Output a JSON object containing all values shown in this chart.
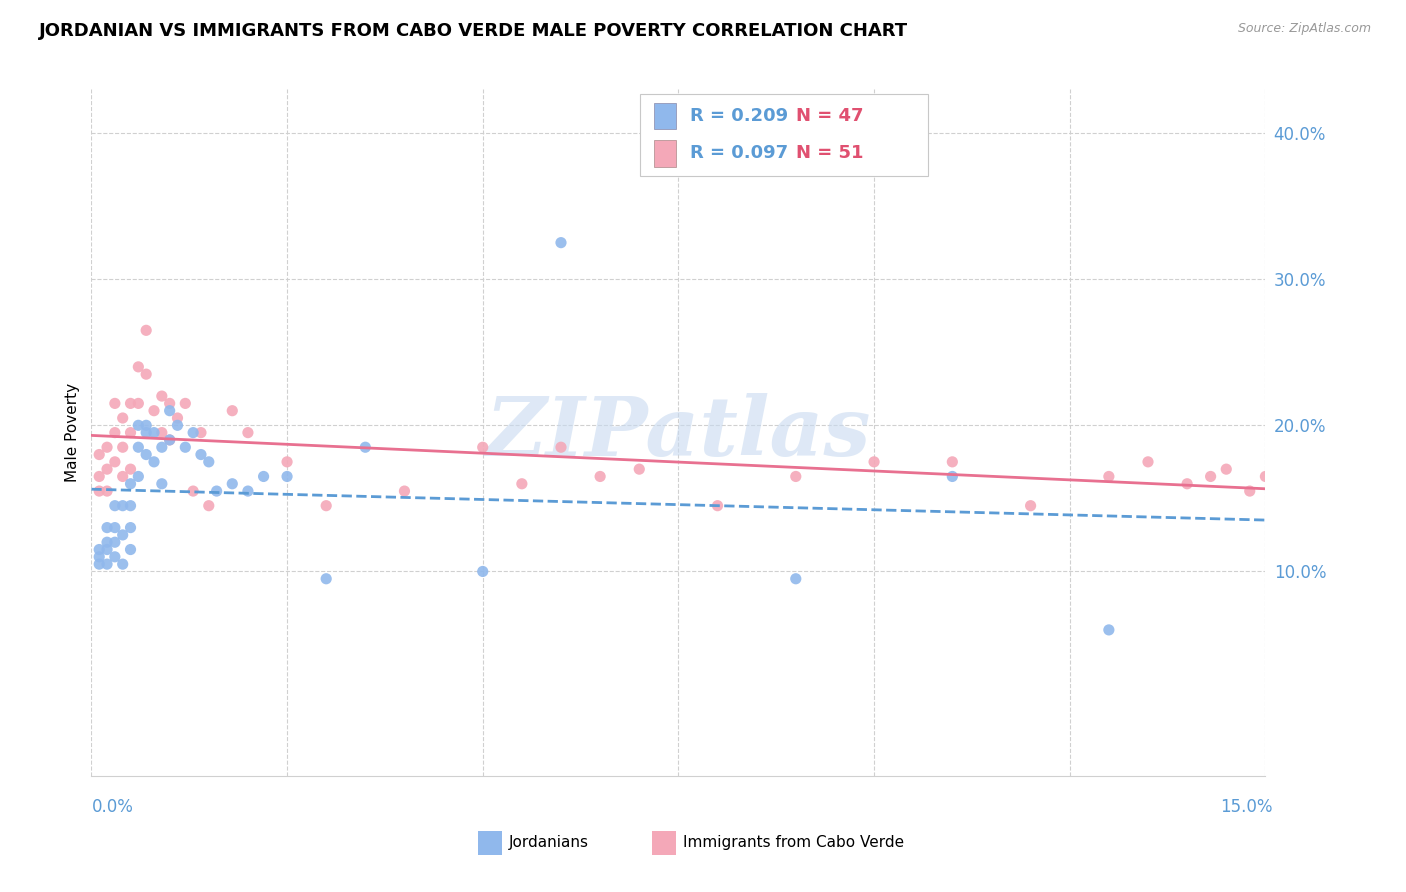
{
  "title": "JORDANIAN VS IMMIGRANTS FROM CABO VERDE MALE POVERTY CORRELATION CHART",
  "source": "Source: ZipAtlas.com",
  "ylabel": "Male Poverty",
  "xlim": [
    0.0,
    0.15
  ],
  "ylim": [
    -0.04,
    0.43
  ],
  "yticks": [
    0.1,
    0.2,
    0.3,
    0.4
  ],
  "ytick_labels": [
    "10.0%",
    "20.0%",
    "30.0%",
    "40.0%"
  ],
  "x_gridlines": [
    0.0,
    0.025,
    0.05,
    0.075,
    0.1,
    0.125,
    0.15
  ],
  "grid_color": "#d0d0d0",
  "background_color": "#ffffff",
  "jordanians_color": "#90b8ec",
  "cabo_verde_color": "#f4a8b8",
  "trend_blue": "#5b9bd5",
  "trend_pink": "#e87090",
  "tick_color": "#5b9bd5",
  "legend_r1": "R = 0.209",
  "legend_n1": "N = 47",
  "legend_r2": "R = 0.097",
  "legend_n2": "N = 51",
  "jordanians_x": [
    0.001,
    0.001,
    0.001,
    0.002,
    0.002,
    0.002,
    0.002,
    0.003,
    0.003,
    0.003,
    0.003,
    0.004,
    0.004,
    0.004,
    0.005,
    0.005,
    0.005,
    0.005,
    0.006,
    0.006,
    0.006,
    0.007,
    0.007,
    0.007,
    0.008,
    0.008,
    0.009,
    0.009,
    0.01,
    0.01,
    0.011,
    0.012,
    0.013,
    0.014,
    0.015,
    0.016,
    0.018,
    0.02,
    0.022,
    0.025,
    0.03,
    0.035,
    0.05,
    0.06,
    0.09,
    0.11,
    0.13
  ],
  "jordanians_y": [
    0.115,
    0.11,
    0.105,
    0.13,
    0.12,
    0.115,
    0.105,
    0.145,
    0.13,
    0.12,
    0.11,
    0.145,
    0.125,
    0.105,
    0.16,
    0.145,
    0.13,
    0.115,
    0.2,
    0.185,
    0.165,
    0.2,
    0.195,
    0.18,
    0.195,
    0.175,
    0.185,
    0.16,
    0.21,
    0.19,
    0.2,
    0.185,
    0.195,
    0.18,
    0.175,
    0.155,
    0.16,
    0.155,
    0.165,
    0.165,
    0.095,
    0.185,
    0.1,
    0.325,
    0.095,
    0.165,
    0.06
  ],
  "cabo_verde_x": [
    0.001,
    0.001,
    0.001,
    0.002,
    0.002,
    0.002,
    0.003,
    0.003,
    0.003,
    0.004,
    0.004,
    0.004,
    0.005,
    0.005,
    0.005,
    0.006,
    0.006,
    0.007,
    0.007,
    0.008,
    0.009,
    0.009,
    0.01,
    0.01,
    0.011,
    0.012,
    0.013,
    0.014,
    0.015,
    0.018,
    0.02,
    0.025,
    0.03,
    0.04,
    0.05,
    0.055,
    0.06,
    0.065,
    0.07,
    0.08,
    0.09,
    0.1,
    0.11,
    0.12,
    0.13,
    0.135,
    0.14,
    0.143,
    0.145,
    0.148,
    0.15
  ],
  "cabo_verde_y": [
    0.18,
    0.165,
    0.155,
    0.185,
    0.17,
    0.155,
    0.215,
    0.195,
    0.175,
    0.205,
    0.185,
    0.165,
    0.215,
    0.195,
    0.17,
    0.24,
    0.215,
    0.265,
    0.235,
    0.21,
    0.22,
    0.195,
    0.215,
    0.19,
    0.205,
    0.215,
    0.155,
    0.195,
    0.145,
    0.21,
    0.195,
    0.175,
    0.145,
    0.155,
    0.185,
    0.16,
    0.185,
    0.165,
    0.17,
    0.145,
    0.165,
    0.175,
    0.175,
    0.145,
    0.165,
    0.175,
    0.16,
    0.165,
    0.17,
    0.155,
    0.165
  ]
}
